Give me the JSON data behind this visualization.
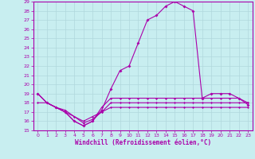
{
  "xlabel": "Windchill (Refroidissement éolien,°C)",
  "ylabel": "",
  "xlim": [
    -0.5,
    23.5
  ],
  "ylim": [
    15,
    29
  ],
  "yticks": [
    15,
    16,
    17,
    18,
    19,
    20,
    21,
    22,
    23,
    24,
    25,
    26,
    27,
    28,
    29
  ],
  "xticks": [
    0,
    1,
    2,
    3,
    4,
    5,
    6,
    7,
    8,
    9,
    10,
    11,
    12,
    13,
    14,
    15,
    16,
    17,
    18,
    19,
    20,
    21,
    22,
    23
  ],
  "background_color": "#c8eef0",
  "grid_color": "#b0d8dc",
  "line_color": "#aa00aa",
  "series1": [
    19,
    18,
    17.5,
    17,
    16,
    15.5,
    16,
    17.2,
    19.5,
    21.5,
    22,
    24.5,
    27,
    27.5,
    28.5,
    29,
    28.5,
    28,
    18.5,
    19,
    19,
    19,
    18.5,
    17.8
  ],
  "series2": [
    18,
    18,
    17.5,
    17,
    16.5,
    16,
    16.5,
    17,
    17.5,
    17.5,
    17.5,
    17.5,
    17.5,
    17.5,
    17.5,
    17.5,
    17.5,
    17.5,
    17.5,
    17.5,
    17.5,
    17.5,
    17.5,
    17.5
  ],
  "series3": [
    19,
    18,
    17.5,
    17.2,
    16.5,
    15.8,
    16.2,
    17,
    18,
    18,
    18,
    18,
    18,
    18,
    18,
    18,
    18,
    18,
    18,
    18,
    18,
    18,
    18,
    18
  ],
  "series4": [
    19,
    18,
    17.5,
    17,
    16,
    15.5,
    16,
    17.5,
    18.5,
    18.5,
    18.5,
    18.5,
    18.5,
    18.5,
    18.5,
    18.5,
    18.5,
    18.5,
    18.5,
    18.5,
    18.5,
    18.5,
    18.5,
    18
  ]
}
